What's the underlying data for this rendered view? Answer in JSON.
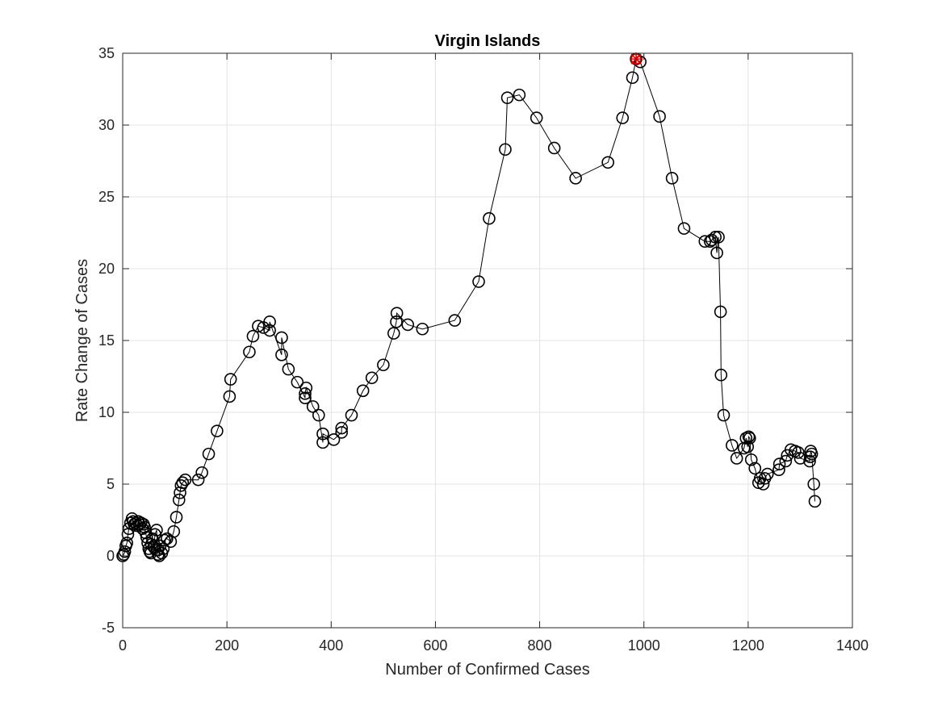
{
  "chart_data": {
    "type": "scatter",
    "connected": true,
    "title": "Virgin Islands",
    "xlabel": "Number of Confirmed Cases",
    "ylabel": "Rate Change of Cases",
    "xlim": [
      0,
      1400
    ],
    "ylim": [
      -5,
      35
    ],
    "xticks": [
      0,
      200,
      400,
      600,
      800,
      1000,
      1200,
      1400
    ],
    "yticks": [
      -5,
      0,
      5,
      10,
      15,
      20,
      25,
      30,
      35
    ],
    "grid": true,
    "marker": "circle",
    "line_color": "#000000",
    "highlight_color": "#e00000",
    "series": [
      {
        "x": [
          0,
          2,
          4,
          6,
          8,
          10,
          12,
          15,
          18,
          20,
          22,
          25,
          28,
          30,
          32,
          35,
          38,
          40,
          42,
          44,
          46,
          48,
          50,
          52,
          54,
          55,
          57,
          60,
          62,
          65,
          67,
          68,
          70,
          72,
          75,
          78,
          80,
          85,
          92,
          98,
          103,
          108,
          110,
          112,
          115,
          120,
          145,
          152,
          165,
          181,
          205,
          207,
          243,
          250,
          260,
          270,
          282,
          282,
          305,
          305,
          318,
          335,
          350,
          350,
          352,
          365,
          376,
          384,
          384,
          405,
          420,
          420,
          439,
          461,
          478,
          500,
          520,
          525,
          526,
          547,
          575,
          637,
          683,
          703,
          734,
          738,
          761,
          794,
          828,
          869,
          931,
          959,
          978,
          985,
          993,
          1030,
          1054,
          1077,
          1117,
          1127,
          1130,
          1137,
          1140,
          1143,
          1147,
          1148,
          1153,
          1169,
          1178,
          1192,
          1196,
          1199,
          1201,
          1203,
          1206,
          1213,
          1220,
          1223,
          1229,
          1232,
          1237,
          1259,
          1260,
          1272,
          1275,
          1282,
          1290,
          1296,
          1300,
          1318,
          1319,
          1320,
          1322,
          1326,
          1328
        ],
        "y": [
          0.0,
          0.1,
          0.3,
          0.7,
          0.9,
          1.5,
          1.9,
          2.3,
          2.6,
          2.4,
          2.2,
          2.3,
          2.1,
          2.4,
          2.2,
          2.3,
          1.9,
          2.2,
          2.0,
          1.6,
          1.3,
          0.9,
          0.5,
          0.3,
          0.2,
          0.8,
          1.2,
          0.6,
          1.5,
          1.8,
          0.4,
          0.1,
          0.0,
          0.7,
          0.2,
          0.5,
          1.1,
          1.2,
          1.0,
          1.7,
          2.7,
          3.9,
          4.4,
          4.9,
          5.1,
          5.3,
          5.3,
          5.8,
          7.1,
          8.7,
          11.1,
          12.3,
          14.2,
          15.3,
          16.0,
          15.9,
          15.7,
          16.3,
          14.0,
          15.2,
          13.0,
          12.1,
          11.0,
          11.3,
          11.7,
          10.4,
          9.8,
          7.9,
          8.5,
          8.1,
          8.6,
          8.9,
          9.8,
          11.5,
          12.4,
          13.3,
          15.5,
          16.3,
          16.9,
          16.1,
          15.8,
          16.4,
          19.1,
          23.5,
          28.3,
          31.9,
          32.1,
          30.5,
          28.4,
          26.3,
          27.4,
          30.5,
          33.3,
          34.6,
          34.4,
          30.6,
          26.3,
          22.8,
          21.9,
          21.9,
          22.0,
          22.2,
          21.1,
          22.2,
          17.0,
          12.6,
          9.8,
          7.7,
          6.8,
          7.5,
          8.2,
          7.6,
          8.3,
          8.2,
          6.7,
          6.1,
          5.1,
          5.4,
          5.0,
          5.4,
          5.7,
          6.0,
          6.4,
          6.6,
          7.0,
          7.4,
          7.3,
          7.2,
          6.8,
          6.6,
          6.9,
          7.3,
          7.1,
          5.0,
          3.8
        ],
        "highlight": {
          "x": 985,
          "y": 34.6
        }
      }
    ]
  }
}
